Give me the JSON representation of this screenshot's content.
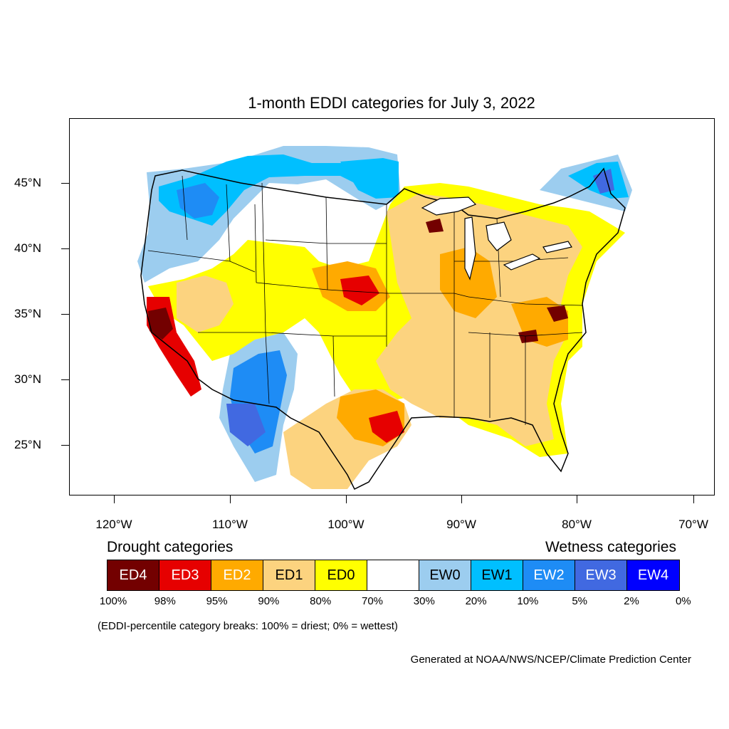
{
  "title": "1-month EDDI categories for July 3, 2022",
  "latitude_labels": [
    "45°N",
    "40°N",
    "35°N",
    "30°N",
    "25°N"
  ],
  "longitude_labels": [
    "120°W",
    "110°W",
    "100°W",
    "90°W",
    "80°W",
    "70°W"
  ],
  "drought_heading": "Drought categories",
  "wetness_heading": "Wetness categories",
  "legend": [
    {
      "label": "ED4",
      "color": "#730000",
      "text_color": "#ffffff"
    },
    {
      "label": "ED3",
      "color": "#e60000",
      "text_color": "#ffffff"
    },
    {
      "label": "ED2",
      "color": "#ffaa00",
      "text_color": "#ffffff"
    },
    {
      "label": "ED1",
      "color": "#fcd37f",
      "text_color": "#000000"
    },
    {
      "label": "ED0",
      "color": "#ffff00",
      "text_color": "#000000"
    },
    {
      "label": "",
      "color": "#ffffff",
      "text_color": "#000000"
    },
    {
      "label": "EW0",
      "color": "#9ccdef",
      "text_color": "#000000"
    },
    {
      "label": "EW1",
      "color": "#00bfff",
      "text_color": "#000000"
    },
    {
      "label": "EW2",
      "color": "#1e8cf5",
      "text_color": "#ffffff"
    },
    {
      "label": "EW3",
      "color": "#4169e1",
      "text_color": "#ffffff"
    },
    {
      "label": "EW4",
      "color": "#0000ff",
      "text_color": "#ffffff"
    }
  ],
  "percentile_breaks": [
    "100%",
    "98%",
    "95%",
    "90%",
    "80%",
    "70%",
    "30%",
    "20%",
    "10%",
    "5%",
    "2%",
    "0%"
  ],
  "note": "(EDDI-percentile category breaks: 100% = driest; 0% = wettest)",
  "credit": "Generated at NOAA/NWS/NCEP/Climate Prediction Center"
}
